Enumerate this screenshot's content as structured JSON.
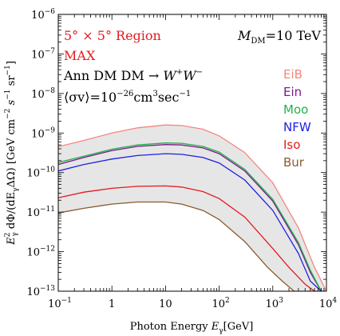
{
  "chart_data": {
    "type": "line",
    "x_scale": "log",
    "y_scale": "log",
    "xlim": [
      0.1,
      10000
    ],
    "ylim": [
      1e-13,
      1e-06
    ],
    "xlabel": {
      "prefix": "Photon Energy",
      "var": "E",
      "sub": "γ",
      "unit": "[GeV]"
    },
    "ylabel": {
      "text": "E",
      "sup": "2",
      "sub": "γ",
      "rest": " dΦ/(dE",
      "sub2": "γ",
      "rest2": "ΔΩ) [GeV cm",
      "sup2": "−2",
      "s": " s",
      "sup3": "−1",
      "sr": " sr",
      "sup4": "−1",
      "close": "]"
    },
    "x_ticks": [
      {
        "value": 0.1,
        "base": "10",
        "exp": "−1"
      },
      {
        "value": 1,
        "label": "1"
      },
      {
        "value": 10,
        "label": "10"
      },
      {
        "value": 100,
        "base": "10",
        "exp": "2"
      },
      {
        "value": 1000,
        "base": "10",
        "exp": "3"
      },
      {
        "value": 10000,
        "base": "10",
        "exp": "4"
      }
    ],
    "y_ticks": [
      {
        "value": 1e-13,
        "base": "10",
        "exp": "−13"
      },
      {
        "value": 1e-12,
        "base": "10",
        "exp": "−12"
      },
      {
        "value": 1e-11,
        "base": "10",
        "exp": "−11"
      },
      {
        "value": 1e-10,
        "base": "10",
        "exp": "−10"
      },
      {
        "value": 1e-09,
        "base": "10",
        "exp": "−9"
      },
      {
        "value": 1e-08,
        "base": "10",
        "exp": "−8"
      },
      {
        "value": 1e-07,
        "base": "10",
        "exp": "−7"
      },
      {
        "value": 1e-06,
        "base": "10",
        "exp": "−6"
      }
    ],
    "grid": false,
    "band_color": "#e6e6e6",
    "annotations": {
      "region": "5° × 5° Region",
      "max": "MAX",
      "process_prefix": "Ann  DM DM → ",
      "process_w1": "W",
      "process_w1_sup": "+",
      "process_w2": "W",
      "process_w2_sup": "−",
      "sigma": "⟨σv⟩=10",
      "sigma_exp": "−26",
      "sigma_unit": "cm",
      "sigma_unit_exp": "3",
      "sigma_unit2": "sec",
      "sigma_unit2_exp": "−1",
      "mass_label": "M",
      "mass_sub": "DM",
      "mass_value": "=10 TeV",
      "region_color": "#e41a1c"
    },
    "legend_position": "right",
    "series": [
      {
        "name": "EiB",
        "color": "#f4877f",
        "x": [
          0.1,
          0.3,
          1,
          3,
          10,
          20,
          50,
          100,
          300,
          1000,
          3000,
          6000,
          10000
        ],
        "y": [
          4.5e-10,
          6.5e-10,
          1e-09,
          1.35e-09,
          1.6e-09,
          1.55e-09,
          1.25e-09,
          8.5e-10,
          3.2e-10,
          5.5e-11,
          4e-12,
          4e-13,
          1e-13
        ]
      },
      {
        "name": "Ein",
        "color": "#7b1a8c",
        "x": [
          0.1,
          0.3,
          1,
          3,
          10,
          20,
          50,
          100,
          300,
          1000,
          3000,
          5000,
          8000
        ],
        "y": [
          1.6e-10,
          2.4e-10,
          3.6e-10,
          4.6e-10,
          5.1e-10,
          5e-10,
          4.2e-10,
          3e-10,
          1.1e-10,
          1.9e-11,
          1.5e-12,
          3e-13,
          1e-13
        ]
      },
      {
        "name": "Moo",
        "color": "#22b14c",
        "x": [
          0.1,
          0.3,
          1,
          3,
          10,
          20,
          50,
          100,
          300,
          1000,
          3000,
          5000,
          8000
        ],
        "y": [
          1.8e-10,
          2.6e-10,
          3.9e-10,
          5e-10,
          5.6e-10,
          5.5e-10,
          4.6e-10,
          3.3e-10,
          1.2e-10,
          2.1e-11,
          1.7e-12,
          3.4e-13,
          1e-13
        ]
      },
      {
        "name": "NFW",
        "color": "#2020e0",
        "x": [
          0.1,
          0.3,
          1,
          3,
          10,
          20,
          50,
          100,
          300,
          1000,
          3000,
          5000,
          8000
        ],
        "y": [
          1.1e-10,
          1.6e-10,
          2.2e-10,
          2.7e-10,
          3e-10,
          2.9e-10,
          2.4e-10,
          1.75e-10,
          6.5e-11,
          1.1e-11,
          9e-13,
          1.8e-13,
          1e-13
        ]
      },
      {
        "name": "Iso",
        "color": "#e41a1c",
        "x": [
          0.1,
          0.3,
          1,
          3,
          10,
          20,
          50,
          100,
          300,
          1000,
          2000,
          4000,
          6000
        ],
        "y": [
          2.3e-11,
          3.2e-11,
          4e-11,
          4.5e-11,
          4.6e-11,
          4.3e-11,
          3.3e-11,
          2.2e-11,
          7.5e-12,
          1.2e-12,
          4e-13,
          1.5e-13,
          1e-13
        ]
      },
      {
        "name": "Bur",
        "color": "#8b5a2b",
        "x": [
          0.1,
          0.3,
          1,
          3,
          10,
          20,
          50,
          100,
          300,
          800,
          1500,
          2500
        ],
        "y": [
          9.5e-12,
          1.25e-11,
          1.6e-11,
          1.8e-11,
          1.8e-11,
          1.6e-11,
          1.1e-11,
          6.5e-12,
          1.8e-12,
          4e-13,
          1.8e-13,
          1e-13
        ]
      }
    ]
  }
}
